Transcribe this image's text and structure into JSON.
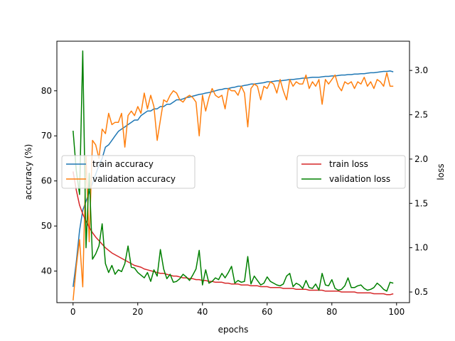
{
  "chart_data": {
    "type": "line",
    "xlabel": "epochs",
    "ylabel_left": "accuracy (%)",
    "ylabel_right": "loss",
    "xlim": [
      -5,
      104
    ],
    "ylim_left": [
      33,
      91
    ],
    "ylim_right": [
      0.38,
      3.33
    ],
    "xticks": [
      0,
      20,
      40,
      60,
      80,
      100
    ],
    "yticks_left": [
      40,
      50,
      60,
      70,
      80
    ],
    "yticks_right": [
      0.5,
      1.0,
      1.5,
      2.0,
      2.5,
      3.0
    ],
    "ytick_labels_right": [
      "0.5",
      "1.0",
      "1.5",
      "2.0",
      "2.5",
      "3.0"
    ],
    "grid": false,
    "legend_left": {
      "placement": "center-left",
      "entries": [
        "train accuracy",
        "validation accuracy"
      ]
    },
    "legend_right": {
      "placement": "center-right",
      "entries": [
        "train loss",
        "validation loss"
      ]
    },
    "series": [
      {
        "name": "train accuracy",
        "axis": "left",
        "color": "#1f77b4",
        "x": [
          0,
          1,
          2,
          3,
          4,
          5,
          6,
          7,
          8,
          9,
          10,
          11,
          12,
          13,
          14,
          15,
          16,
          17,
          18,
          19,
          20,
          21,
          22,
          23,
          24,
          25,
          26,
          27,
          28,
          29,
          30,
          31,
          32,
          33,
          34,
          35,
          36,
          37,
          38,
          39,
          40,
          41,
          42,
          43,
          44,
          45,
          46,
          47,
          48,
          49,
          50,
          51,
          52,
          53,
          54,
          55,
          56,
          57,
          58,
          59,
          60,
          61,
          62,
          63,
          64,
          65,
          66,
          67,
          68,
          69,
          70,
          71,
          72,
          73,
          74,
          75,
          76,
          77,
          78,
          79,
          80,
          81,
          82,
          83,
          84,
          85,
          86,
          87,
          88,
          89,
          90,
          91,
          92,
          93,
          94,
          95,
          96,
          97,
          98,
          99
        ],
        "y": [
          36.5,
          42.0,
          49.0,
          53.5,
          55.5,
          57.5,
          59.5,
          61.5,
          63.5,
          65.0,
          67.5,
          68.0,
          69.0,
          70.0,
          71.0,
          71.5,
          72.0,
          72.5,
          73.0,
          73.5,
          73.5,
          74.5,
          75.0,
          75.5,
          75.5,
          76.0,
          76.0,
          76.5,
          76.5,
          77.0,
          77.0,
          77.5,
          78.0,
          78.0,
          78.2,
          78.5,
          78.6,
          78.8,
          79.0,
          79.2,
          79.3,
          79.5,
          79.6,
          79.8,
          80.0,
          80.2,
          80.3,
          80.5,
          80.5,
          80.7,
          80.8,
          81.0,
          81.0,
          81.2,
          81.3,
          81.5,
          81.5,
          81.6,
          81.7,
          81.8,
          82.0,
          82.0,
          82.1,
          82.2,
          82.2,
          82.3,
          82.4,
          82.5,
          82.5,
          82.6,
          82.7,
          82.8,
          82.8,
          82.9,
          83.0,
          83.0,
          83.0,
          83.1,
          83.2,
          83.2,
          83.3,
          83.3,
          83.4,
          83.5,
          83.5,
          83.6,
          83.6,
          83.7,
          83.7,
          83.8,
          83.8,
          83.9,
          84.0,
          84.0,
          84.1,
          84.2,
          84.3,
          84.3,
          84.4,
          84.2
        ]
      },
      {
        "name": "validation accuracy",
        "axis": "left",
        "color": "#ff7f0e",
        "x": [
          0,
          1,
          2,
          3,
          4,
          5,
          6,
          7,
          8,
          9,
          10,
          11,
          12,
          13,
          14,
          15,
          16,
          17,
          18,
          19,
          20,
          21,
          22,
          23,
          24,
          25,
          26,
          27,
          28,
          29,
          30,
          31,
          32,
          33,
          34,
          35,
          36,
          37,
          38,
          39,
          40,
          41,
          42,
          43,
          44,
          45,
          46,
          47,
          48,
          49,
          50,
          51,
          52,
          53,
          54,
          55,
          56,
          57,
          58,
          59,
          60,
          61,
          62,
          63,
          64,
          65,
          66,
          67,
          68,
          69,
          70,
          71,
          72,
          73,
          74,
          75,
          76,
          77,
          78,
          79,
          80,
          81,
          82,
          83,
          84,
          85,
          86,
          87,
          88,
          89,
          90,
          91,
          92,
          93,
          94,
          95,
          96,
          97,
          98,
          99
        ],
        "y": [
          33.5,
          41.0,
          47.0,
          36.5,
          65.5,
          46.5,
          69.0,
          68.0,
          65.0,
          71.5,
          70.5,
          75.0,
          72.5,
          73.0,
          73.0,
          75.0,
          67.5,
          74.5,
          75.5,
          74.5,
          76.5,
          75.0,
          79.5,
          76.0,
          79.0,
          76.5,
          69.0,
          73.5,
          78.0,
          77.5,
          79.0,
          80.0,
          79.5,
          78.0,
          77.5,
          78.5,
          79.0,
          78.5,
          77.5,
          70.0,
          79.0,
          75.5,
          78.5,
          80.5,
          79.0,
          78.5,
          79.0,
          76.0,
          80.5,
          80.0,
          80.0,
          79.0,
          81.0,
          79.5,
          72.0,
          80.5,
          81.5,
          81.0,
          78.0,
          81.0,
          80.5,
          82.0,
          81.5,
          79.5,
          82.5,
          80.0,
          78.0,
          82.5,
          81.0,
          82.0,
          81.5,
          81.5,
          83.5,
          80.5,
          82.0,
          81.0,
          82.5,
          77.0,
          82.5,
          81.5,
          82.5,
          83.5,
          81.0,
          80.0,
          82.0,
          81.5,
          82.0,
          80.5,
          82.0,
          81.5,
          83.0,
          81.0,
          82.0,
          80.5,
          82.5,
          82.0,
          81.0,
          84.0,
          81.0,
          81.0
        ]
      },
      {
        "name": "train loss",
        "axis": "right",
        "color": "#d62728",
        "x": [
          0,
          1,
          2,
          3,
          4,
          5,
          6,
          7,
          8,
          9,
          10,
          11,
          12,
          13,
          14,
          15,
          16,
          17,
          18,
          19,
          20,
          21,
          22,
          23,
          24,
          25,
          26,
          27,
          28,
          29,
          30,
          31,
          32,
          33,
          34,
          35,
          36,
          37,
          38,
          39,
          40,
          41,
          42,
          43,
          44,
          45,
          46,
          47,
          48,
          49,
          50,
          51,
          52,
          53,
          54,
          55,
          56,
          57,
          58,
          59,
          60,
          61,
          62,
          63,
          64,
          65,
          66,
          67,
          68,
          69,
          70,
          71,
          72,
          73,
          74,
          75,
          76,
          77,
          78,
          79,
          80,
          81,
          82,
          83,
          84,
          85,
          86,
          87,
          88,
          89,
          90,
          91,
          92,
          93,
          94,
          95,
          96,
          97,
          98,
          99
        ],
        "y": [
          1.86,
          1.65,
          1.48,
          1.38,
          1.3,
          1.23,
          1.17,
          1.12,
          1.08,
          1.04,
          1.0,
          0.97,
          0.94,
          0.92,
          0.9,
          0.88,
          0.86,
          0.84,
          0.82,
          0.8,
          0.79,
          0.78,
          0.76,
          0.75,
          0.74,
          0.73,
          0.72,
          0.71,
          0.71,
          0.7,
          0.69,
          0.68,
          0.68,
          0.67,
          0.66,
          0.66,
          0.65,
          0.65,
          0.64,
          0.64,
          0.63,
          0.63,
          0.62,
          0.62,
          0.61,
          0.61,
          0.61,
          0.6,
          0.6,
          0.59,
          0.59,
          0.59,
          0.58,
          0.58,
          0.58,
          0.57,
          0.57,
          0.57,
          0.56,
          0.56,
          0.56,
          0.55,
          0.55,
          0.55,
          0.55,
          0.54,
          0.54,
          0.54,
          0.54,
          0.53,
          0.53,
          0.53,
          0.53,
          0.52,
          0.52,
          0.52,
          0.52,
          0.52,
          0.51,
          0.51,
          0.51,
          0.51,
          0.51,
          0.5,
          0.5,
          0.5,
          0.5,
          0.5,
          0.49,
          0.49,
          0.49,
          0.49,
          0.49,
          0.48,
          0.48,
          0.48,
          0.48,
          0.47,
          0.47,
          0.48
        ]
      },
      {
        "name": "validation loss",
        "axis": "right",
        "color": "#008000",
        "x": [
          0,
          1,
          2,
          3,
          4,
          5,
          6,
          7,
          8,
          9,
          10,
          11,
          12,
          13,
          14,
          15,
          16,
          17,
          18,
          19,
          20,
          21,
          22,
          23,
          24,
          25,
          26,
          27,
          28,
          29,
          30,
          31,
          32,
          33,
          34,
          35,
          36,
          37,
          38,
          39,
          40,
          41,
          42,
          43,
          44,
          45,
          46,
          47,
          48,
          49,
          50,
          51,
          52,
          53,
          54,
          55,
          56,
          57,
          58,
          59,
          60,
          61,
          62,
          63,
          64,
          65,
          66,
          67,
          68,
          69,
          70,
          71,
          72,
          73,
          74,
          75,
          76,
          77,
          78,
          79,
          80,
          81,
          82,
          83,
          84,
          85,
          86,
          87,
          88,
          89,
          90,
          91,
          92,
          93,
          94,
          95,
          96,
          97,
          98,
          99
        ],
        "y": [
          2.32,
          1.87,
          1.6,
          3.22,
          1.0,
          1.84,
          0.87,
          0.93,
          1.02,
          1.27,
          0.82,
          0.72,
          0.8,
          0.7,
          0.75,
          0.73,
          0.82,
          1.02,
          0.78,
          0.77,
          0.72,
          0.69,
          0.66,
          0.72,
          0.62,
          0.75,
          0.68,
          0.98,
          0.76,
          0.65,
          0.7,
          0.61,
          0.62,
          0.65,
          0.7,
          0.67,
          0.63,
          0.69,
          0.76,
          0.97,
          0.58,
          0.75,
          0.6,
          0.62,
          0.66,
          0.64,
          0.71,
          0.66,
          0.72,
          0.79,
          0.6,
          0.63,
          0.61,
          0.62,
          0.9,
          0.59,
          0.68,
          0.63,
          0.58,
          0.6,
          0.67,
          0.62,
          0.6,
          0.58,
          0.57,
          0.59,
          0.68,
          0.71,
          0.56,
          0.6,
          0.58,
          0.54,
          0.63,
          0.55,
          0.54,
          0.59,
          0.52,
          0.71,
          0.58,
          0.57,
          0.64,
          0.54,
          0.52,
          0.53,
          0.57,
          0.66,
          0.55,
          0.55,
          0.57,
          0.58,
          0.54,
          0.52,
          0.53,
          0.55,
          0.6,
          0.57,
          0.53,
          0.51,
          0.61,
          0.6
        ]
      }
    ]
  }
}
